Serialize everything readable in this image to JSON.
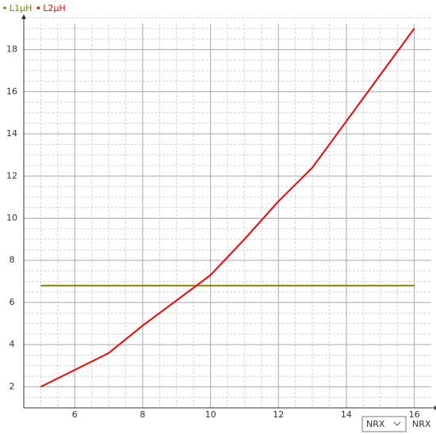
{
  "chart_data": {
    "type": "line",
    "x_label": "NRX",
    "selector": "NRX",
    "xlim": [
      4.5,
      16.5
    ],
    "ylim": [
      1,
      19.6
    ],
    "xticks": [
      6,
      8,
      10,
      12,
      14,
      16
    ],
    "yticks": [
      2,
      4,
      6,
      8,
      10,
      12,
      14,
      16,
      18
    ],
    "grid": true,
    "legend": "top-left",
    "series": [
      {
        "name": "L1µH",
        "color": "#808000",
        "x": [
          5,
          16
        ],
        "values": [
          6.8,
          6.8
        ]
      },
      {
        "name": "L2µH",
        "color": "#ff0000",
        "x": [
          5,
          7,
          8,
          9,
          10,
          11,
          12,
          13,
          14,
          15,
          16
        ],
        "values": [
          2,
          3.6,
          4.9,
          6.1,
          7.3,
          9.0,
          10.8,
          12.4,
          14.6,
          16.8,
          19
        ]
      }
    ]
  }
}
